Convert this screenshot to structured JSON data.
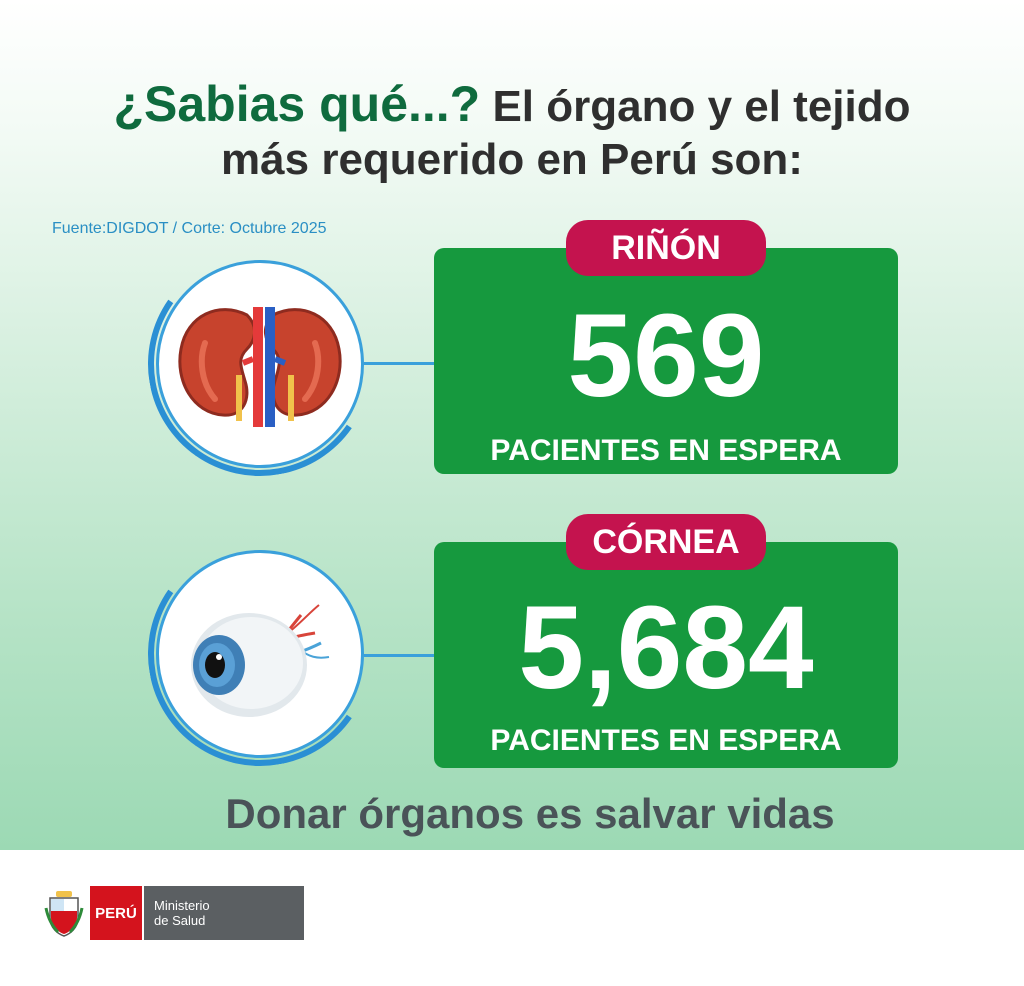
{
  "headline": {
    "highlight": "¿Sabias qué...?",
    "line1_rest": " El órgano y el tejido",
    "line2": "más requerido en Perú son:"
  },
  "source": "Fuente:DIGDOT / Corte: Octubre 2025",
  "cards": [
    {
      "label": "RIÑÓN",
      "value": "569",
      "caption": "PACIENTES EN ESPERA",
      "icon": "kidney-icon"
    },
    {
      "label": "CÓRNEA",
      "value": "5,684",
      "caption": "PACIENTES EN ESPERA",
      "icon": "eye-icon"
    }
  ],
  "slogan": "Donar órganos es salvar vidas",
  "footer": {
    "peru": "PERÚ",
    "ministry_line1": "Ministerio",
    "ministry_line2": "de Salud"
  },
  "colors": {
    "card_green": "#16993e",
    "pill_magenta": "#c4134e",
    "headline_green": "#0f6b3e",
    "circle_blue": "#3aa0db"
  }
}
